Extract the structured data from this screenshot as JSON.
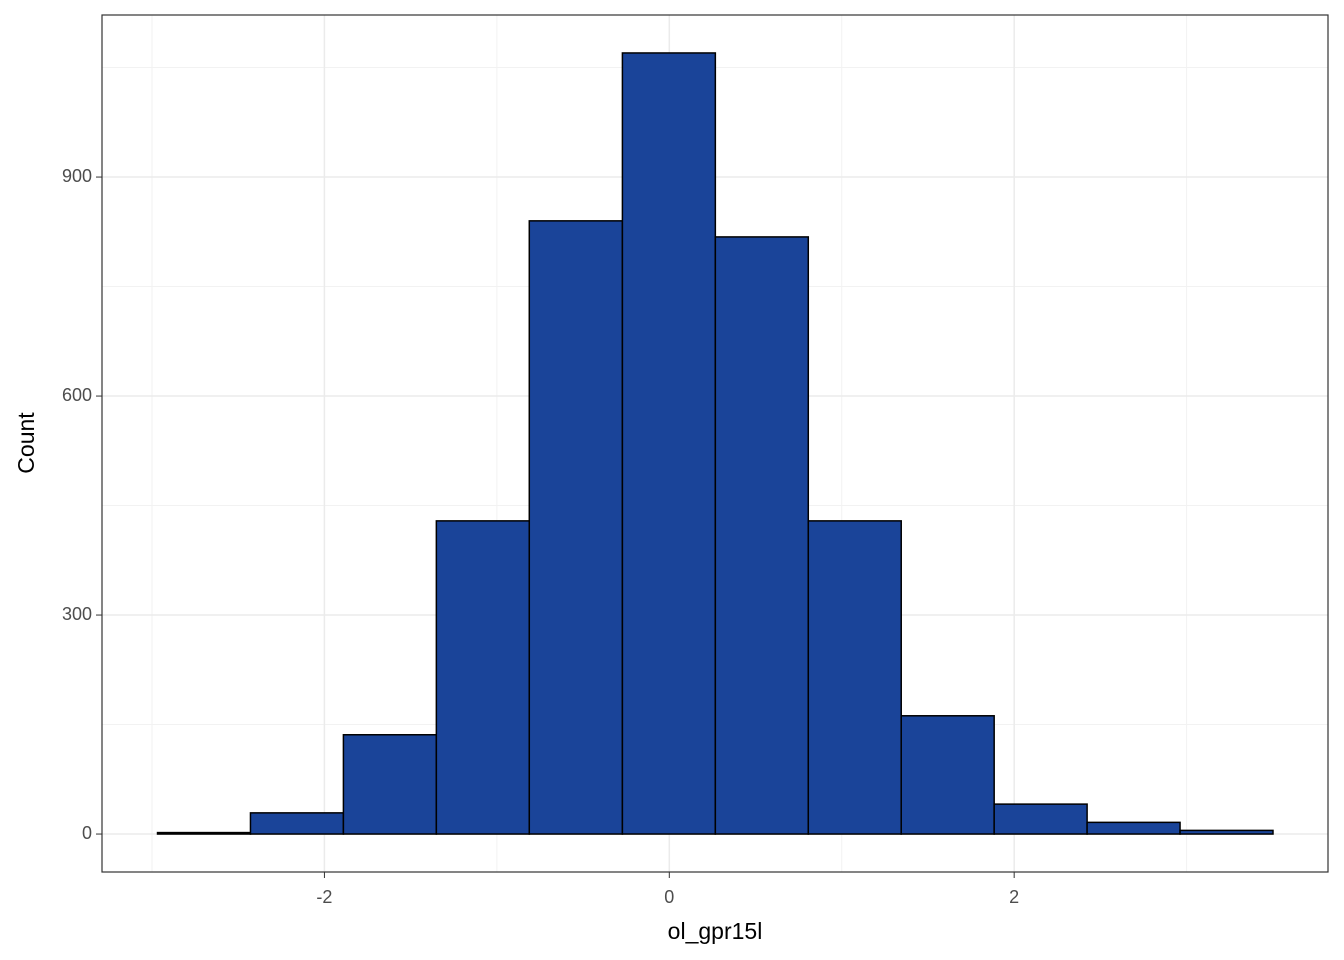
{
  "chart_data": {
    "type": "histogram",
    "x_label": "ol_gpr15l",
    "y_label": "Count",
    "bins": [
      -2.968,
      -2.429,
      -1.89,
      -1.351,
      -0.812,
      -0.272,
      0.267,
      0.806,
      1.345,
      1.884,
      2.423,
      2.962,
      3.501
    ],
    "counts": [
      2,
      29,
      136,
      429,
      840,
      1070,
      818,
      429,
      162,
      41,
      16,
      5
    ],
    "color": "#1a4499",
    "edgecolor": "#000000",
    "xlim": [
      -3.29,
      3.82
    ],
    "ylim": [
      -52,
      1122
    ],
    "xticks": [
      -2,
      0,
      2
    ],
    "yticks": [
      0,
      300,
      600,
      900
    ],
    "xminor": [
      -3,
      -1,
      1,
      3
    ],
    "yminor": [
      150,
      450,
      750,
      1050
    ],
    "grid": true
  }
}
